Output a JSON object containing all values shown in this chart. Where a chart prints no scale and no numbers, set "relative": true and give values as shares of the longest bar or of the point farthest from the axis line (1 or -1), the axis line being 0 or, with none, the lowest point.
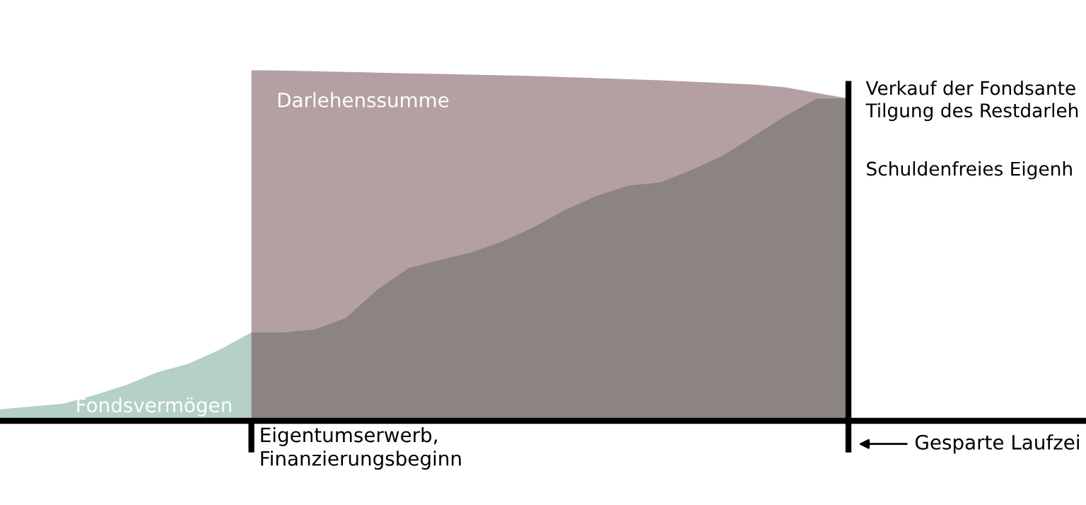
{
  "chart_data": {
    "type": "area",
    "relative": true,
    "categories": [
      null,
      null,
      null,
      null,
      null,
      null,
      null,
      null,
      null,
      null,
      null,
      null,
      null,
      null,
      null,
      null,
      null,
      null,
      null,
      null,
      null,
      null,
      null,
      null,
      null,
      null,
      null,
      null
    ],
    "series": [
      {
        "name": "Darlehenssumme",
        "color": "#b4a0a3",
        "values": [
          null,
          null,
          null,
          null,
          null,
          null,
          null,
          null,
          1.0,
          0.999,
          0.997,
          0.995,
          0.993,
          0.991,
          0.989,
          0.987,
          0.985,
          0.983,
          0.98,
          0.977,
          0.974,
          0.971,
          0.967,
          0.963,
          0.959,
          0.951,
          0.935,
          0.919
        ]
      },
      {
        "name": "Fondsvermögen",
        "color": "#b5d0c6",
        "values": [
          0.033,
          0.041,
          0.049,
          0.073,
          0.102,
          0.138,
          0.163,
          0.203,
          0.252,
          null,
          null,
          null,
          null,
          null,
          null,
          null,
          null,
          null,
          null,
          null,
          null,
          null,
          null,
          null,
          null,
          null,
          null,
          null
        ]
      },
      {
        "color": "#8c8482",
        "values": [
          null,
          null,
          null,
          null,
          null,
          null,
          null,
          null,
          0.252,
          0.252,
          0.26,
          0.293,
          0.374,
          0.435,
          0.459,
          0.48,
          0.512,
          0.553,
          0.602,
          0.642,
          0.671,
          0.679,
          0.715,
          0.756,
          0.813,
          0.87,
          0.919,
          0.919
        ]
      }
    ],
    "annotations": [
      "Eigentumserwerb,\nFinanzierungsbeginn",
      "Gesparte Laufzei",
      "Verkauf der Fondsante\nTilgung des Restdarleh",
      "Schuldenfreies Eigenh"
    ]
  }
}
